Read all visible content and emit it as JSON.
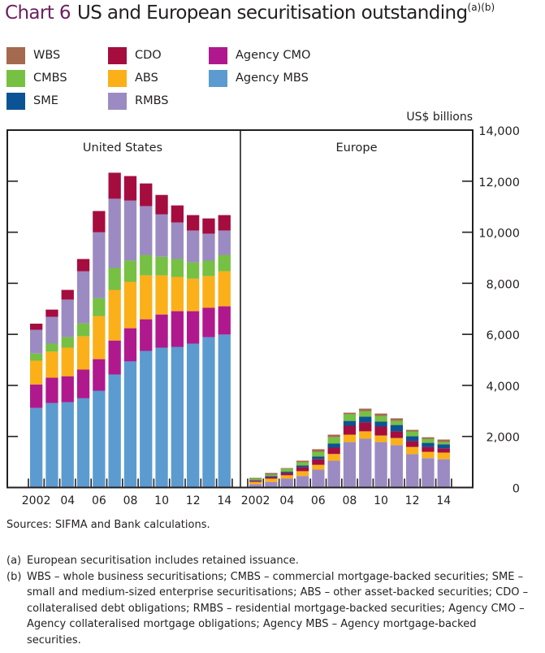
{
  "title": {
    "number": "Chart 6",
    "text": "US and European securitisation outstanding",
    "superscript": "(a)(b)"
  },
  "legend": [
    {
      "name": "WBS",
      "color": "#a5694f"
    },
    {
      "name": "CMBS",
      "color": "#76c043"
    },
    {
      "name": "SME",
      "color": "#0b5394"
    },
    {
      "name": "CDO",
      "color": "#a50d3f"
    },
    {
      "name": "ABS",
      "color": "#fbb01a"
    },
    {
      "name": "RMBS",
      "color": "#9b8bc2"
    },
    {
      "name": "Agency CMO",
      "color": "#b0198d"
    },
    {
      "name": "Agency MBS",
      "color": "#5b9bd0"
    }
  ],
  "chart_data": {
    "type": "bar",
    "stacked": true,
    "title": "US and European securitisation outstanding",
    "ylabel": "US$ billions",
    "ylim": [
      0,
      14000
    ],
    "yticks": [
      0,
      2000,
      4000,
      6000,
      8000,
      10000,
      12000,
      14000
    ],
    "ytick_labels": [
      "0",
      "2,000",
      "4,000",
      "6,000",
      "8,000",
      "10,000",
      "12,000",
      "14,000"
    ],
    "y_axis_side": "right",
    "grid": false,
    "legend_position": "top-left",
    "panels": [
      {
        "title": "United States",
        "categories": [
          "2002",
          "2003",
          "2004",
          "2005",
          "2006",
          "2007",
          "2008",
          "2009",
          "2010",
          "2011",
          "2012",
          "2013",
          "2014"
        ],
        "xtick_labels": [
          "2002",
          "",
          "04",
          "",
          "06",
          "",
          "08",
          "",
          "10",
          "",
          "12",
          "",
          "14"
        ],
        "series": [
          {
            "name": "Agency MBS",
            "values": [
              3120,
              3310,
              3340,
              3500,
              3790,
              4430,
              4940,
              5350,
              5480,
              5510,
              5640,
              5890,
              5990
            ]
          },
          {
            "name": "Agency CMO",
            "values": [
              920,
              990,
              1020,
              1120,
              1240,
              1330,
              1300,
              1240,
              1300,
              1400,
              1270,
              1150,
              1110
            ]
          },
          {
            "name": "ABS",
            "values": [
              930,
              1020,
              1120,
              1300,
              1690,
              1980,
              1820,
              1720,
              1530,
              1340,
              1270,
              1240,
              1370
            ]
          },
          {
            "name": "CMBS",
            "values": [
              280,
              320,
              410,
              510,
              700,
              860,
              830,
              800,
              730,
              700,
              640,
              610,
              640
            ]
          },
          {
            "name": "RMBS",
            "values": [
              930,
              1050,
              1470,
              2040,
              2580,
              2710,
              2350,
              1910,
              1660,
              1430,
              1240,
              1050,
              950
            ]
          },
          {
            "name": "CDO",
            "values": [
              240,
              280,
              380,
              480,
              830,
              1020,
              960,
              890,
              760,
              670,
              610,
              600,
              610
            ]
          }
        ]
      },
      {
        "title": "Europe",
        "categories": [
          "2002",
          "2003",
          "2004",
          "2005",
          "2006",
          "2007",
          "2008",
          "2009",
          "2010",
          "2011",
          "2012",
          "2013",
          "2014"
        ],
        "xtick_labels": [
          "2002",
          "",
          "04",
          "",
          "06",
          "",
          "08",
          "",
          "10",
          "",
          "12",
          "",
          "14"
        ],
        "series": [
          {
            "name": "RMBS",
            "values": [
              130,
              220,
              350,
              450,
              700,
              1050,
              1780,
              1910,
              1780,
              1660,
              1310,
              1150,
              1110
            ]
          },
          {
            "name": "ABS",
            "values": [
              90,
              130,
              130,
              190,
              190,
              260,
              290,
              290,
              260,
              280,
              280,
              250,
              260
            ]
          },
          {
            "name": "CDO",
            "values": [
              40,
              60,
              90,
              160,
              220,
              250,
              350,
              350,
              350,
              260,
              230,
              190,
              160
            ]
          },
          {
            "name": "SME",
            "values": [
              30,
              40,
              50,
              60,
              100,
              160,
              190,
              220,
              190,
              250,
              190,
              160,
              160
            ]
          },
          {
            "name": "CMBS",
            "values": [
              60,
              60,
              110,
              130,
              190,
              250,
              260,
              220,
              220,
              160,
              190,
              160,
              90
            ]
          },
          {
            "name": "WBS",
            "values": [
              30,
              60,
              30,
              60,
              100,
              100,
              60,
              100,
              100,
              100,
              60,
              60,
              100
            ]
          }
        ]
      }
    ]
  },
  "sources": "Sources:  SIFMA and Bank calculations.",
  "notes": [
    {
      "tag": "(a)",
      "text": "European securitisation includes retained issuance."
    },
    {
      "tag": "(b)",
      "text": "WBS – whole business securitisations;  CMBS – commercial mortgage-backed securities;  SME – small and medium-sized enterprise securitisations;  ABS – other asset-backed securities;  CDO – collateralised debt obligations;  RMBS – residential mortgage-backed securities;  Agency CMO – Agency collateralised mortgage obligations;  Agency MBS – Agency mortgage-backed securities."
    }
  ]
}
